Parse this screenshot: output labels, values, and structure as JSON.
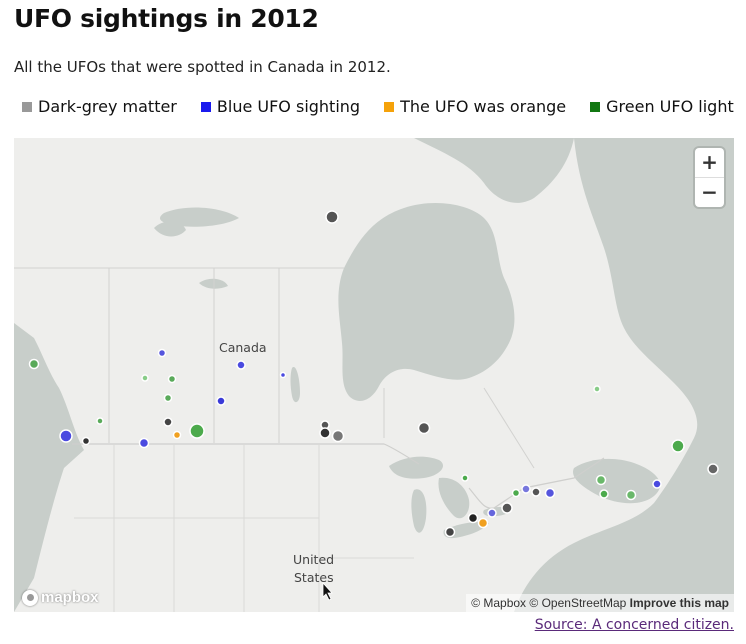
{
  "header": {
    "title": "UFO sightings in 2012",
    "subtitle": "All the UFOs that were spotted in Canada in 2012."
  },
  "legend": [
    {
      "label": "Dark-grey matter",
      "color": "#999999"
    },
    {
      "label": "Blue UFO sighting",
      "color": "#1a1aee"
    },
    {
      "label": "The UFO was orange",
      "color": "#f5a20a"
    },
    {
      "label": "Green UFO light",
      "color": "#117711"
    }
  ],
  "map": {
    "labels": {
      "canada": "Canada",
      "us_line1": "United",
      "us_line2": "States"
    },
    "zoom_in": "+",
    "zoom_out": "−",
    "logo_text": "mapbox",
    "attribution": {
      "mapbox": "© Mapbox",
      "osm": "© OpenStreetMap",
      "improve": "Improve this map"
    },
    "colors": {
      "land": "#eeeeec",
      "water": "#c8ceca",
      "grey": "#555555",
      "blue": "#3a3ad8",
      "orange": "#f0a020",
      "green": "#4caa4c"
    }
  },
  "source_link": "Source: A concerned citizen."
}
